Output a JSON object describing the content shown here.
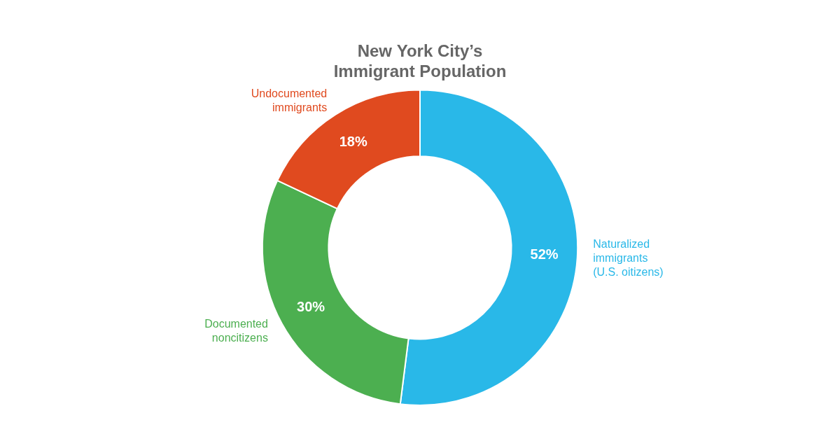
{
  "chart_data": {
    "type": "doughnut",
    "title": "New York City’s\nImmigrant Population",
    "categories": [
      "Naturalized\nimmigrants\n(U.S. oitizens)",
      "Documented\nnoncitizens",
      "Undocumented\nimmigrants"
    ],
    "values": [
      52,
      30,
      18
    ],
    "value_labels": [
      "52%",
      "30%",
      "18%"
    ],
    "colors": [
      "#29b8e8",
      "#4caf50",
      "#e04a1f"
    ],
    "data_labels": true,
    "legend": false
  }
}
